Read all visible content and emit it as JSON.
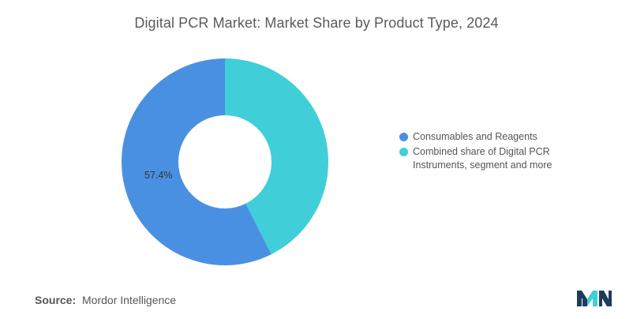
{
  "title": "Digital PCR Market: Market Share by Product Type, 2024",
  "chart_data": {
    "type": "pie",
    "style": "donut",
    "slices": [
      {
        "label": "Consumables and Reagents",
        "value": 57.4,
        "color": "#4a90e2",
        "data_label": "57.4%"
      },
      {
        "label": "Combined share of Digital PCR Instruments, segment and more",
        "value": 42.6,
        "color": "#40cfd9",
        "data_label": ""
      }
    ],
    "legend_position": "right"
  },
  "legend": {
    "items": [
      {
        "label": "Consumables and Reagents",
        "color": "#4a90e2"
      },
      {
        "label": "Combined share of Digital PCR Instruments, segment and more",
        "color": "#40cfd9"
      }
    ]
  },
  "source": {
    "label": "Source:",
    "text": "Mordor Intelligence"
  },
  "logo": {
    "icon": "mordor-intelligence-logo-icon",
    "colors": [
      "#1f3b5c",
      "#40cfd9"
    ]
  }
}
